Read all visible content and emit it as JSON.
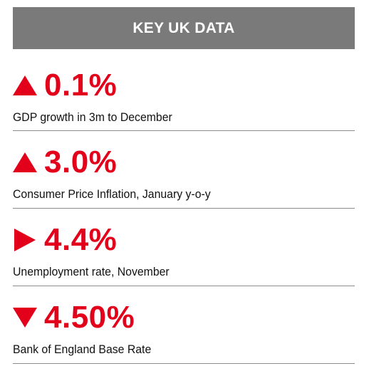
{
  "header": {
    "title": "KEY UK DATA",
    "background_color": "#7a7a7a",
    "text_color": "#ffffff"
  },
  "accent_color": "#e2001a",
  "stats": [
    {
      "icon": "triangle-up-icon",
      "direction": "up",
      "value": "0.1%",
      "label": "GDP growth in 3m to December"
    },
    {
      "icon": "triangle-up-icon",
      "direction": "up",
      "value": "3.0%",
      "label": "Consumer Price Inflation, January y-o-y"
    },
    {
      "icon": "triangle-right-icon",
      "direction": "flat",
      "value": "4.4%",
      "label": "Unemployment rate, November"
    },
    {
      "icon": "triangle-down-icon",
      "direction": "down",
      "value": "4.50%",
      "label": "Bank of England Base Rate"
    }
  ]
}
